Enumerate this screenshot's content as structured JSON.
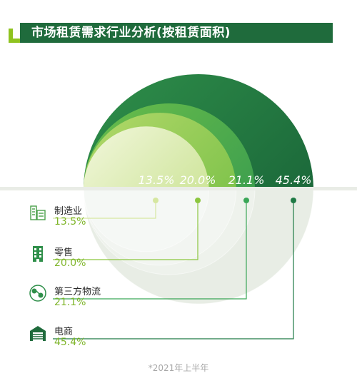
{
  "chart_data": {
    "type": "bubble-comparison",
    "title": "市场租赁需求行业分析(按租赁面积)",
    "categories": [
      "制造业",
      "零售",
      "第三方物流",
      "电商"
    ],
    "values": [
      13.5,
      20.0,
      21.1,
      45.4
    ],
    "value_labels": [
      "13.5%",
      "20.0%",
      "21.1%",
      "45.4%"
    ],
    "unit": "%",
    "icons": [
      "factory-icon",
      "building-icon",
      "logistics-icon",
      "warehouse-icon"
    ],
    "colors": [
      "#d6e7a0",
      "#8cc63f",
      "#3aa657",
      "#1f7a45"
    ],
    "footnote": "*2021年上半年"
  }
}
